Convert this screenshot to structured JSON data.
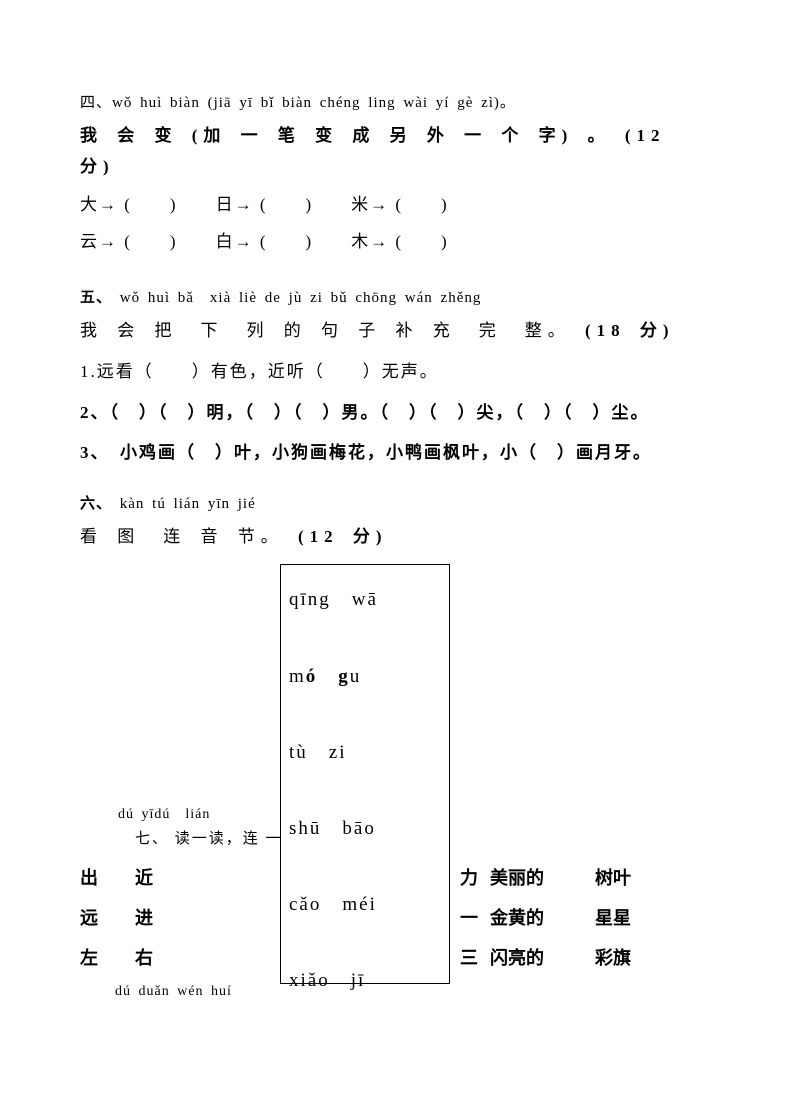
{
  "section4": {
    "pinyin": "四、wǒ huì biàn (jiā yī bǐ biàn chéng ling wài yí gè zì)。",
    "hanzi_prefix": "我 会 变 (加 一 笔 变 成   另 外 一  个 字) 。",
    "points": "(12 分)",
    "row1": "大→ (　　)　　日→ (　　)　　米→ (　　)",
    "row2": "云→ (　　)　　白→ (　　)　　木→ (　　)"
  },
  "section5": {
    "label": "五、",
    "pinyin": "wǒ huì bǎ　xià liè de jù zi bǔ chōng wán zhěng",
    "hanzi": "我 会 把　下　列 的 句 子 补 充　完　整。",
    "points": "(18 分)",
    "q1": "1.远看（　　）有色，近听（　　）无声。",
    "q2": "2、（　）（　）明，（　）（　）男。（　）（　）尖，（　）（　）尘。",
    "q3": "3、　小鸡画（　）叶，小狗画梅花，小鸭画枫叶，小（　）画月牙。"
  },
  "section6": {
    "label": "六、",
    "pinyin": "kàn tú lián yīn jié",
    "hanzi": "看 图　连 音 节。",
    "points": "(12 分)",
    "items": [
      "qīng　wā",
      "mó　gu",
      "tù　zi",
      "shū　bāo",
      "cǎo　méi",
      "xiǎo　jī"
    ]
  },
  "section7": {
    "pinyin": "dú yīdú　lián",
    "hanzi": "七、 读一读，连 一",
    "rows": [
      {
        "c1": "出",
        "c2": "近",
        "c3": "力",
        "c4": "美丽的",
        "c5": "树叶"
      },
      {
        "c1": "远",
        "c2": "进",
        "c3": "一",
        "c4": "金黄的",
        "c5": "星星"
      },
      {
        "c1": "左",
        "c2": "右",
        "c3": "三",
        "c4": "闪亮的",
        "c5": "彩旗"
      }
    ]
  },
  "section8": {
    "pinyin": "dú duǎn wén huí"
  }
}
